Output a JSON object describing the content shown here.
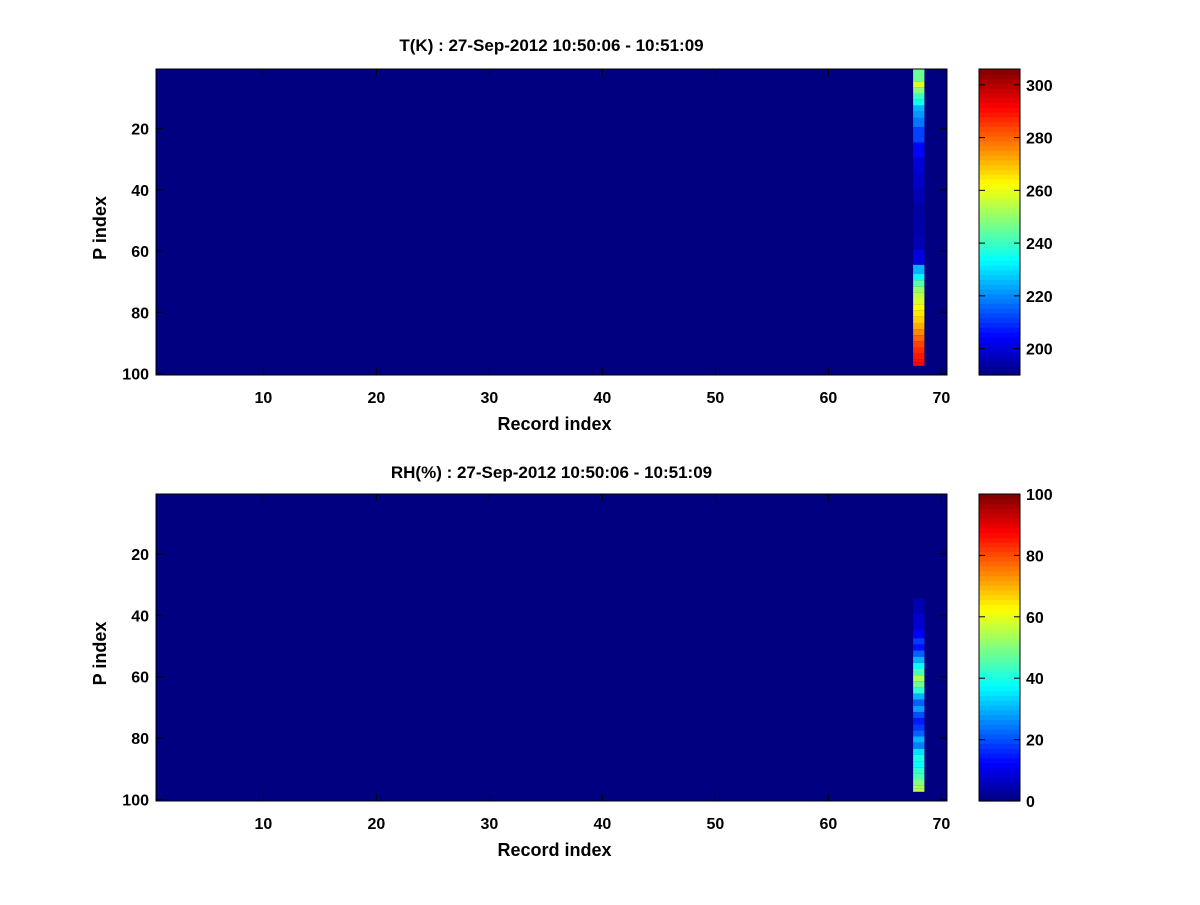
{
  "chart_data": [
    {
      "type": "heatmap",
      "title": "T(K) : 27-Sep-2012 10:50:06 - 10:51:09",
      "xlabel": "Record index",
      "ylabel": "P index",
      "xlim": [
        0.5,
        70.5
      ],
      "ylim": [
        0.5,
        100.5
      ],
      "y_reversed": true,
      "xticks": [
        10,
        20,
        30,
        40,
        50,
        60,
        70
      ],
      "yticks": [
        20,
        40,
        60,
        80,
        100
      ],
      "colormap": "jet",
      "clim": [
        190,
        306
      ],
      "colorbar_ticks": [
        200,
        220,
        240,
        260,
        280,
        300
      ],
      "background_value": 190,
      "column": {
        "record_index": 68,
        "p_index": [
          1,
          5,
          7,
          9,
          11,
          13,
          15,
          17,
          20,
          25,
          30,
          35,
          40,
          45,
          50,
          55,
          60,
          65,
          68,
          70,
          72,
          74,
          76,
          78,
          80,
          82,
          84,
          86,
          88,
          90,
          92,
          94,
          96,
          97
        ],
        "values": [
          246,
          258,
          249,
          240,
          235,
          225,
          222,
          218,
          212,
          205,
          200,
          198,
          196,
          194,
          195,
          196,
          201,
          225,
          233,
          243,
          250,
          255,
          258,
          262,
          265,
          268,
          272,
          276,
          280,
          284,
          287,
          289,
          290,
          291
        ]
      }
    },
    {
      "type": "heatmap",
      "title": "RH(%) : 27-Sep-2012 10:50:06 - 10:51:09",
      "xlabel": "Record index",
      "ylabel": "P index",
      "xlim": [
        0.5,
        70.5
      ],
      "ylim": [
        0.5,
        100.5
      ],
      "y_reversed": true,
      "xticks": [
        10,
        20,
        30,
        40,
        50,
        60,
        70
      ],
      "yticks": [
        20,
        40,
        60,
        80,
        100
      ],
      "colormap": "jet",
      "clim": [
        0,
        100
      ],
      "colorbar_ticks": [
        0,
        20,
        40,
        60,
        80,
        100
      ],
      "background_value": 0,
      "column": {
        "record_index": 68,
        "p_index": [
          1,
          30,
          35,
          40,
          45,
          48,
          50,
          52,
          54,
          56,
          58,
          60,
          62,
          64,
          66,
          68,
          70,
          72,
          74,
          76,
          78,
          80,
          82,
          84,
          86,
          88,
          90,
          92,
          94,
          96,
          97
        ],
        "values": [
          0,
          0,
          5,
          8,
          12,
          18,
          14,
          22,
          30,
          38,
          45,
          55,
          48,
          42,
          30,
          22,
          28,
          20,
          15,
          18,
          22,
          30,
          25,
          35,
          40,
          38,
          42,
          45,
          50,
          55,
          55
        ]
      }
    }
  ]
}
